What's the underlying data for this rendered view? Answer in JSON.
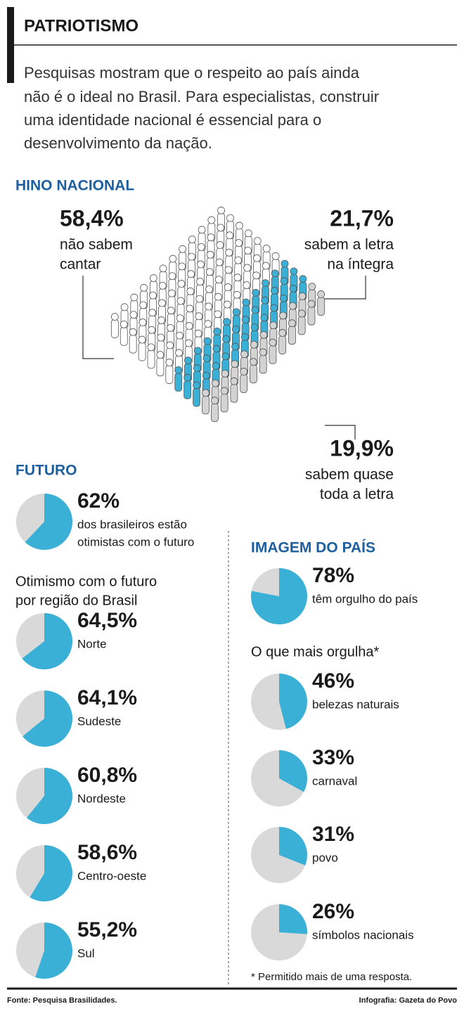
{
  "header": {
    "title": "PATRIOTISMO",
    "intro": [
      "Pesquisas mostram que o respeito ao país ainda",
      "não é o ideal no Brasil. Para especialistas, construir",
      "uma identidade nacional é essencial para o",
      "desenvolvimento da nação."
    ]
  },
  "chart_data": [
    {
      "type": "pictogram",
      "title": "HINO NACIONAL",
      "categories": [
        [
          "não sabem",
          "cantar"
        ],
        [
          "sabem a letra",
          "na íntegra"
        ],
        [
          "sabem quase",
          "toda a letra"
        ]
      ],
      "values": [
        58.4,
        21.7,
        19.9
      ],
      "value_labels": [
        "58,4%",
        "21,7%",
        "19,9%"
      ],
      "colors": [
        "#ffffff",
        "#3bb0d6",
        "#d3d3d4"
      ]
    },
    {
      "type": "pie",
      "title": [
        "FUTURO"
      ],
      "categories": [
        [
          "dos brasileiros estão",
          "otimistas com o futuro"
        ]
      ],
      "values": [
        62
      ],
      "value_labels": [
        "62%"
      ],
      "color": "#3bb0d6",
      "background_color": "#d9d9da"
    },
    {
      "type": "pie",
      "title": [
        "Otimismo com o futuro",
        "por região do Brasil"
      ],
      "categories": [
        [
          "Norte"
        ],
        [
          "Sudeste"
        ],
        [
          "Nordeste"
        ],
        [
          "Centro-oeste"
        ],
        [
          "Sul"
        ]
      ],
      "values": [
        64.5,
        64.1,
        60.8,
        58.6,
        55.2
      ],
      "value_labels": [
        "64,5%",
        "64,1%",
        "60,8%",
        "58,6%",
        "55,2%"
      ],
      "color": "#3bb0d6",
      "background_color": "#d9d9da"
    },
    {
      "type": "pie",
      "title": [
        "IMAGEM DO PAÍS"
      ],
      "categories": [
        [
          "têm orgulho do país"
        ]
      ],
      "values": [
        78
      ],
      "value_labels": [
        "78%"
      ],
      "color": "#3bb0d6",
      "background_color": "#d9d9da"
    },
    {
      "type": "pie",
      "title": [
        "O que mais orgulha*"
      ],
      "categories": [
        [
          "belezas naturais"
        ],
        [
          "carnaval"
        ],
        [
          "povo"
        ],
        [
          "símbolos nacionais"
        ]
      ],
      "values": [
        46,
        33,
        31,
        26
      ],
      "value_labels": [
        "46%",
        "33%",
        "31%",
        "26%"
      ],
      "color": "#3bb0d6",
      "background_color": "#d9d9da",
      "footnote": "* Permitido mais de uma resposta."
    }
  ],
  "footer": {
    "source": "Fonte: Pesquisa Brasilidades.",
    "credit": "Infografia: Gazeta do Povo"
  }
}
